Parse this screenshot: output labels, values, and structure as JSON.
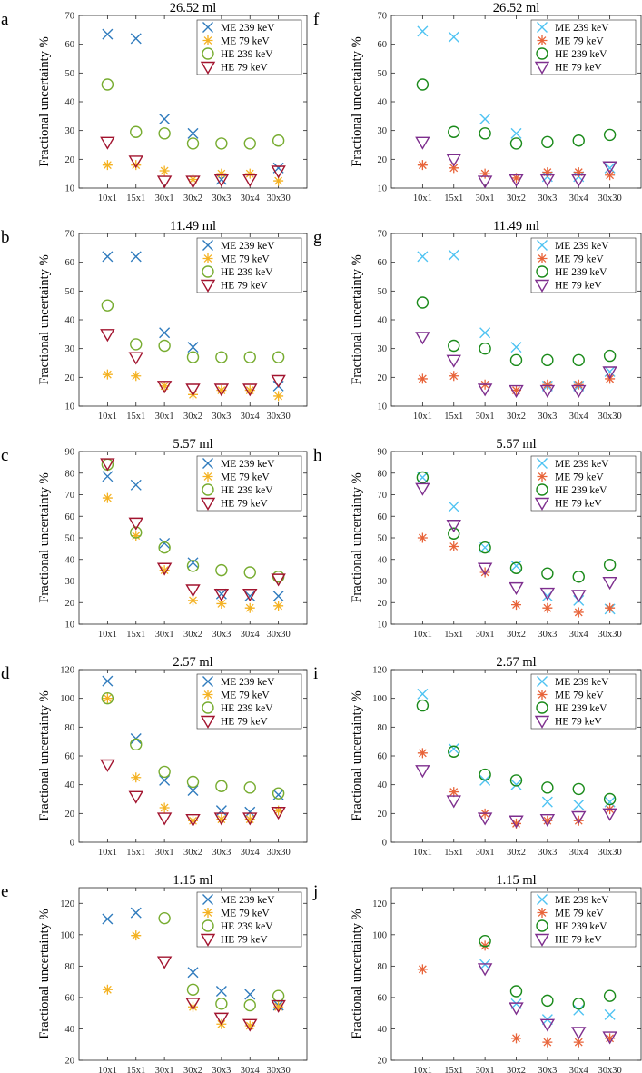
{
  "colors": {
    "left": {
      "me239": "#2f7bbd",
      "me79": "#f4b223",
      "he239": "#77ac30",
      "he79": "#a2142f"
    },
    "right": {
      "me239": "#4fc3f2",
      "me79": "#e8643a",
      "he239": "#1a8a1a",
      "he79": "#7e2f8e"
    }
  },
  "chart_data": [
    {
      "letter": "a",
      "type": "scatter",
      "title": "26.52 ml",
      "ylabel": "Fractional uncertainty %",
      "ylim": [
        10,
        70
      ],
      "yticks": [
        10,
        20,
        30,
        40,
        50,
        60,
        70
      ],
      "categories": [
        "10x1",
        "15x1",
        "30x1",
        "30x2",
        "30x3",
        "30x4",
        "30x30"
      ],
      "palette": "left",
      "legend_position": "top-right",
      "series": [
        {
          "key": "me239",
          "name": "ME 239 keV",
          "marker": "x",
          "values": [
            63.5,
            62,
            34,
            29,
            13,
            null,
            17
          ]
        },
        {
          "key": "me79",
          "name": "ME 79 keV",
          "marker": "star",
          "values": [
            18,
            18,
            16,
            13,
            15,
            15,
            12.5
          ]
        },
        {
          "key": "he239",
          "name": "HE 239 keV",
          "marker": "circle",
          "values": [
            46,
            29.5,
            29,
            25.5,
            25.5,
            25.5,
            26.5
          ]
        },
        {
          "key": "he79",
          "name": "HE 79 keV",
          "marker": "triangle",
          "values": [
            26,
            19.5,
            12.5,
            12.5,
            13,
            13,
            16
          ]
        }
      ]
    },
    {
      "letter": "b",
      "type": "scatter",
      "title": "11.49 ml",
      "ylabel": "Fractional uncertainty %",
      "ylim": [
        10,
        70
      ],
      "yticks": [
        10,
        20,
        30,
        40,
        50,
        60,
        70
      ],
      "categories": [
        "10x1",
        "15x1",
        "30x1",
        "30x2",
        "30x3",
        "30x4",
        "30x30"
      ],
      "palette": "left",
      "legend_position": "top-right",
      "series": [
        {
          "key": "me239",
          "name": "ME 239 keV",
          "marker": "x",
          "values": [
            62,
            62,
            35.5,
            30.5,
            null,
            null,
            17
          ]
        },
        {
          "key": "me79",
          "name": "ME 79 keV",
          "marker": "star",
          "values": [
            21,
            20.5,
            17,
            14,
            15.5,
            15.5,
            13.5
          ]
        },
        {
          "key": "he239",
          "name": "HE 239 keV",
          "marker": "circle",
          "values": [
            45,
            31.5,
            31,
            27,
            27,
            27,
            27
          ]
        },
        {
          "key": "he79",
          "name": "HE 79 keV",
          "marker": "triangle",
          "values": [
            35,
            27,
            17,
            16,
            16,
            16,
            19
          ]
        }
      ]
    },
    {
      "letter": "c",
      "type": "scatter",
      "title": "5.57 ml",
      "ylabel": "Fractional uncertainty %",
      "ylim": [
        10,
        90
      ],
      "yticks": [
        10,
        20,
        30,
        40,
        50,
        60,
        70,
        80,
        90
      ],
      "categories": [
        "10x1",
        "15x1",
        "30x1",
        "30x2",
        "30x3",
        "30x4",
        "30x30"
      ],
      "palette": "left",
      "legend_position": "top-right",
      "series": [
        {
          "key": "me239",
          "name": "ME 239 keV",
          "marker": "x",
          "values": [
            78.5,
            74.5,
            47.5,
            38.5,
            24,
            23,
            23
          ]
        },
        {
          "key": "me79",
          "name": "ME 79 keV",
          "marker": "star",
          "values": [
            68.5,
            51,
            35,
            21,
            19.5,
            17.5,
            18.5
          ]
        },
        {
          "key": "he239",
          "name": "HE 239 keV",
          "marker": "circle",
          "values": [
            84,
            52.5,
            45.5,
            37,
            35,
            34,
            32
          ]
        },
        {
          "key": "he79",
          "name": "HE 79 keV",
          "marker": "triangle",
          "values": [
            84.5,
            57,
            36,
            26,
            24,
            24,
            31
          ]
        }
      ]
    },
    {
      "letter": "d",
      "type": "scatter",
      "title": "2.57 ml",
      "ylabel": "Fractional uncertainty %",
      "ylim": [
        0,
        120
      ],
      "yticks": [
        0,
        20,
        40,
        60,
        80,
        100,
        120
      ],
      "categories": [
        "10x1",
        "15x1",
        "30x1",
        "30x2",
        "30x3",
        "30x4",
        "30x30"
      ],
      "palette": "left",
      "legend_position": "top-right",
      "series": [
        {
          "key": "me239",
          "name": "ME 239 keV",
          "marker": "x",
          "values": [
            112,
            72,
            43,
            36,
            22,
            21,
            33
          ]
        },
        {
          "key": "me79",
          "name": "ME 79 keV",
          "marker": "star",
          "values": [
            100,
            45,
            24,
            15,
            16,
            16,
            22
          ]
        },
        {
          "key": "he239",
          "name": "HE 239 keV",
          "marker": "circle",
          "values": [
            100,
            68,
            49,
            42,
            39,
            38,
            34
          ]
        },
        {
          "key": "he79",
          "name": "HE 79 keV",
          "marker": "triangle",
          "values": [
            54,
            32,
            17,
            16,
            17,
            17,
            21
          ]
        }
      ]
    },
    {
      "letter": "e",
      "type": "scatter",
      "title": "1.15 ml",
      "ylabel": "Fractional uncertainty %",
      "ylim": [
        20,
        130
      ],
      "yticks": [
        20,
        40,
        60,
        80,
        100,
        120
      ],
      "categories": [
        "10x1",
        "15x1",
        "30x1",
        "30x2",
        "30x3",
        "30x4",
        "30x30"
      ],
      "palette": "left",
      "legend_position": "top-right",
      "series": [
        {
          "key": "me239",
          "name": "ME 239 keV",
          "marker": "x",
          "values": [
            110,
            114,
            null,
            76,
            64,
            62,
            55
          ]
        },
        {
          "key": "me79",
          "name": "ME 79 keV",
          "marker": "star",
          "values": [
            65,
            99.5,
            null,
            54,
            43,
            42,
            54
          ]
        },
        {
          "key": "he239",
          "name": "HE 239 keV",
          "marker": "circle",
          "values": [
            null,
            null,
            110.5,
            65,
            56,
            55,
            61
          ]
        },
        {
          "key": "he79",
          "name": "HE 79 keV",
          "marker": "triangle",
          "values": [
            null,
            null,
            83,
            56.5,
            47,
            43,
            55
          ]
        }
      ]
    },
    {
      "letter": "f",
      "type": "scatter",
      "title": "26.52 ml",
      "ylabel": "Fractional uncertainty %",
      "ylim": [
        10,
        70
      ],
      "yticks": [
        10,
        20,
        30,
        40,
        50,
        60,
        70
      ],
      "categories": [
        "10x1",
        "15x1",
        "30x1",
        "30x2",
        "30x3",
        "30x4",
        "30x30"
      ],
      "palette": "right",
      "legend_position": "top-right",
      "series": [
        {
          "key": "me239",
          "name": "ME 239 keV",
          "marker": "x",
          "values": [
            64.5,
            62.5,
            34,
            29,
            14,
            14,
            17
          ]
        },
        {
          "key": "me79",
          "name": "ME 79 keV",
          "marker": "star",
          "values": [
            18,
            17,
            15,
            13.5,
            15.5,
            15.5,
            14.5
          ]
        },
        {
          "key": "he239",
          "name": "HE 239 keV",
          "marker": "circle",
          "values": [
            46,
            29.5,
            29,
            25.5,
            26,
            26.5,
            28.5
          ]
        },
        {
          "key": "he79",
          "name": "HE 79 keV",
          "marker": "triangle",
          "values": [
            26,
            20,
            12.5,
            13,
            13,
            13,
            17.5
          ]
        }
      ]
    },
    {
      "letter": "g",
      "type": "scatter",
      "title": "11.49 ml",
      "ylabel": "Fractional uncertainty %",
      "ylim": [
        10,
        70
      ],
      "yticks": [
        10,
        20,
        30,
        40,
        50,
        60,
        70
      ],
      "categories": [
        "10x1",
        "15x1",
        "30x1",
        "30x2",
        "30x3",
        "30x4",
        "30x30"
      ],
      "palette": "right",
      "legend_position": "top-right",
      "series": [
        {
          "key": "me239",
          "name": "ME 239 keV",
          "marker": "x",
          "values": [
            62,
            62.5,
            35.5,
            30.5,
            17,
            17,
            22
          ]
        },
        {
          "key": "me79",
          "name": "ME 79 keV",
          "marker": "star",
          "values": [
            19.5,
            20.5,
            17.5,
            15.5,
            17.5,
            17.5,
            19.5
          ]
        },
        {
          "key": "he239",
          "name": "HE 239 keV",
          "marker": "circle",
          "values": [
            46,
            31,
            30,
            26,
            26,
            26,
            27.5
          ]
        },
        {
          "key": "he79",
          "name": "HE 79 keV",
          "marker": "triangle",
          "values": [
            34,
            26,
            16,
            15.5,
            15.5,
            15.5,
            22
          ]
        }
      ]
    },
    {
      "letter": "h",
      "type": "scatter",
      "title": "5.57 ml",
      "ylabel": "Fractional uncertainty %",
      "ylim": [
        10,
        90
      ],
      "yticks": [
        10,
        20,
        30,
        40,
        50,
        60,
        70,
        80,
        90
      ],
      "categories": [
        "10x1",
        "15x1",
        "30x1",
        "30x2",
        "30x3",
        "30x4",
        "30x30"
      ],
      "palette": "right",
      "legend_position": "top-right",
      "series": [
        {
          "key": "me239",
          "name": "ME 239 keV",
          "marker": "x",
          "values": [
            78,
            64.5,
            45.5,
            37,
            23,
            21,
            17
          ]
        },
        {
          "key": "me79",
          "name": "ME 79 keV",
          "marker": "star",
          "values": [
            50,
            46,
            34,
            19,
            17.5,
            15.5,
            17.5
          ]
        },
        {
          "key": "he239",
          "name": "HE 239 keV",
          "marker": "circle",
          "values": [
            78,
            52,
            45.5,
            36,
            33.5,
            32,
            37.5
          ]
        },
        {
          "key": "he79",
          "name": "HE 79 keV",
          "marker": "triangle",
          "values": [
            73,
            56,
            36,
            27,
            24.5,
            23.5,
            29.5
          ]
        }
      ]
    },
    {
      "letter": "i",
      "type": "scatter",
      "title": "2.57 ml",
      "ylabel": "Fractional uncertainty %",
      "ylim": [
        0,
        120
      ],
      "yticks": [
        0,
        20,
        40,
        60,
        80,
        100,
        120
      ],
      "categories": [
        "10x1",
        "15x1",
        "30x1",
        "30x2",
        "30x3",
        "30x4",
        "30x30"
      ],
      "palette": "right",
      "legend_position": "top-right",
      "series": [
        {
          "key": "me239",
          "name": "ME 239 keV",
          "marker": "x",
          "values": [
            103,
            65,
            43,
            40,
            28,
            26,
            28
          ]
        },
        {
          "key": "me79",
          "name": "ME 79 keV",
          "marker": "star",
          "values": [
            62,
            35,
            20,
            13,
            15,
            15,
            23
          ]
        },
        {
          "key": "he239",
          "name": "HE 239 keV",
          "marker": "circle",
          "values": [
            95,
            63,
            47,
            43,
            38,
            37,
            30
          ]
        },
        {
          "key": "he79",
          "name": "HE 79 keV",
          "marker": "triangle",
          "values": [
            50,
            29,
            17,
            15,
            16,
            18,
            20
          ]
        }
      ]
    },
    {
      "letter": "j",
      "type": "scatter",
      "title": "1.15 ml",
      "ylabel": "Fractional uncertainty %",
      "ylim": [
        20,
        130
      ],
      "yticks": [
        20,
        40,
        60,
        80,
        100,
        120
      ],
      "categories": [
        "10x1",
        "15x1",
        "30x1",
        "30x2",
        "30x3",
        "30x4",
        "30x30"
      ],
      "palette": "right",
      "legend_position": "top-right",
      "series": [
        {
          "key": "me239",
          "name": "ME 239 keV",
          "marker": "x",
          "values": [
            null,
            null,
            81,
            56,
            46,
            52,
            49
          ]
        },
        {
          "key": "me79",
          "name": "ME 79 keV",
          "marker": "star",
          "values": [
            78,
            null,
            93,
            34,
            31.5,
            31.5,
            34
          ]
        },
        {
          "key": "he239",
          "name": "HE 239 keV",
          "marker": "circle",
          "values": [
            null,
            null,
            96,
            64,
            58,
            56,
            61
          ]
        },
        {
          "key": "he79",
          "name": "HE 79 keV",
          "marker": "triangle",
          "values": [
            null,
            null,
            78.5,
            53.5,
            43,
            38,
            35
          ]
        }
      ]
    }
  ]
}
